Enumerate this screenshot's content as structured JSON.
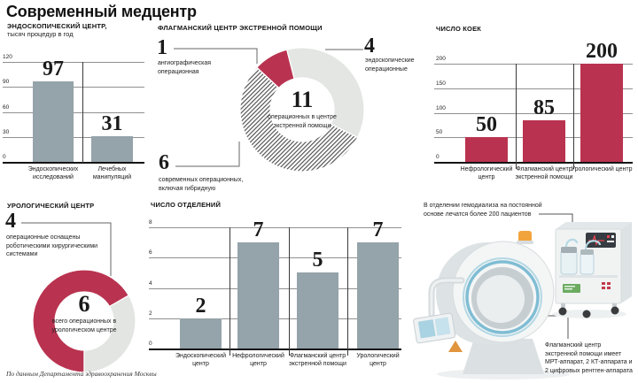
{
  "page": {
    "title": "Современный медцентр",
    "footer": "По данным Департамента здравоохранения Москвы"
  },
  "colors": {
    "accent_red": "#b93350",
    "bar_gray": "#95a3aa",
    "slice_light": "#e3e6e3",
    "hatch_line": "#4f4f4f"
  },
  "chart_data": [
    {
      "id": "endoscopy",
      "type": "bar",
      "title": "ЭНДОСКОПИЧЕСКИЙ ЦЕНТР,",
      "subtitle": "тысяч процедур в год",
      "categories": [
        "Эндоскопических исследований",
        "Лечебных манипуляций"
      ],
      "values": [
        97,
        31
      ],
      "yticks": [
        120,
        90,
        60,
        30,
        0
      ],
      "ylim": [
        0,
        120
      ],
      "grid": true,
      "bar_color": "#95a3aa"
    },
    {
      "id": "beds",
      "type": "bar",
      "title": "ЧИСЛО КОЕК",
      "subtitle": "",
      "categories": [
        "Нефрологический центр",
        "Флагманский центр экстренной помощи",
        "Урологический центр"
      ],
      "values": [
        50,
        85,
        200
      ],
      "yticks": [
        200,
        150,
        100,
        50,
        0
      ],
      "ylim": [
        0,
        200
      ],
      "grid": true,
      "bar_color": "#b93350"
    },
    {
      "id": "departments",
      "type": "bar",
      "title": "ЧИСЛО ОТДЕЛЕНИЙ",
      "subtitle": "",
      "categories": [
        "Эндоскопический центр",
        "Нефрологический центр",
        "Флагманский центр экстренной помощи",
        "Урологический центр"
      ],
      "values": [
        2,
        7,
        5,
        7
      ],
      "yticks": [
        8,
        6,
        4,
        2,
        0
      ],
      "ylim": [
        0,
        8
      ],
      "grid": true,
      "bar_color": "#95a3aa"
    },
    {
      "id": "flagship",
      "type": "donut",
      "title": "ФЛАГМАНСКИЙ ЦЕНТР ЭКСТРЕННОЙ ПОМОЩИ",
      "center_value": "11",
      "center_label": "операционных в центре экстренной помощи",
      "slices": [
        {
          "value": 1,
          "label": "ангиографическая операционная",
          "style": "solid",
          "color": "#b93350"
        },
        {
          "value": 4,
          "label": "эндоскопические операционные",
          "style": "solid",
          "color": "#e3e6e3"
        },
        {
          "value": 6,
          "label": "современных операционных, включая гибридную",
          "style": "hatch",
          "color": "#4f4f4f"
        }
      ]
    },
    {
      "id": "urology",
      "type": "donut",
      "title": "УРОЛОГИЧЕСКИЙ ЦЕНТР",
      "center_value": "6",
      "center_label": "всего операционных в урологическом центре",
      "slices": [
        {
          "value": 4,
          "label": "операционные оснащены роботическими хирургическими системами",
          "style": "solid",
          "color": "#b93350"
        },
        {
          "value": 2,
          "label": "",
          "style": "solid",
          "color": "#e2e5e2"
        }
      ]
    }
  ],
  "illustration": {
    "note_top": "В отделении гемодиализа на постоянной основе лечатся более 200 пациентов",
    "note_bottom": "Флагманский центр экстренной помощи имеет МРТ-аппарат, 2 КТ-аппарата и 2 цифровых рентген-аппарата"
  }
}
